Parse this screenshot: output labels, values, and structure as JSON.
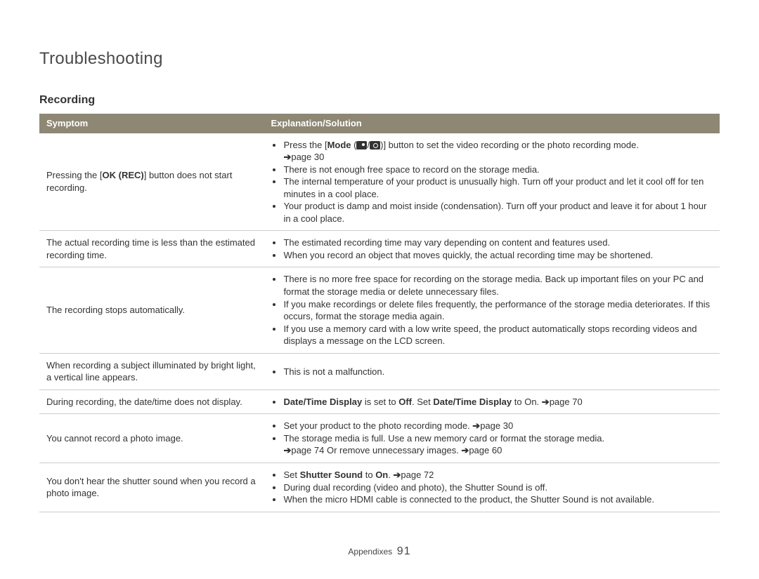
{
  "page_title": "Troubleshooting",
  "section_title": "Recording",
  "headers": {
    "col1": "Symptom",
    "col2": "Explanation/Solution"
  },
  "arrow_glyph": "➔",
  "rows": {
    "r1": {
      "symptom_pre": "Pressing the [",
      "symptom_bold": "OK (REC)",
      "symptom_post": "] button does not start recording.",
      "b1_pre": "Press the [",
      "b1_bold": "Mode",
      "b1_mid": " (",
      "b1_between": "/",
      "b1_close": ")] button to set the video recording or the photo recording mode. ",
      "b1_ref": "page 30",
      "b2": "There is not enough free space to record on the storage media.",
      "b3": "The internal temperature of your product is unusually high. Turn off your product and let it cool off for ten minutes in a cool place.",
      "b4": "Your product is damp and moist inside (condensation). Turn off your product and leave it for about 1 hour in a cool place."
    },
    "r2": {
      "symptom": "The actual recording time is less than the estimated recording time.",
      "b1": "The estimated recording time may vary depending on content and features used.",
      "b2": "When you record an object that moves quickly, the actual recording time may be shortened."
    },
    "r3": {
      "symptom": "The recording stops automatically.",
      "b1": "There is no more free space for recording on the storage media. Back up important files on your PC and format the storage media or delete unnecessary files.",
      "b2": "If you make recordings or delete files frequently, the performance of the storage media deteriorates. If this occurs, format the storage media again.",
      "b3": "If you use a memory card with a low write speed, the product automatically stops recording videos and displays a message on the LCD screen."
    },
    "r4": {
      "symptom": "When recording a subject illuminated by bright light, a vertical line appears.",
      "b1": "This is not a malfunction."
    },
    "r5": {
      "symptom": "During recording, the date/time does not display.",
      "b1_bold1": "Date/Time Display",
      "b1_mid1": " is set to ",
      "b1_bold2": "Off",
      "b1_mid2": ". Set ",
      "b1_bold3": "Date/Time Display",
      "b1_mid3": " to On. ",
      "b1_ref": "page 70"
    },
    "r6": {
      "symptom": "You cannot record a photo image.",
      "b1_pre": "Set your product to the photo recording mode. ",
      "b1_ref": "page 30",
      "b2_pre": "The storage media is full. Use a new memory card or format the storage media. ",
      "b2_ref1": "page 74 ",
      "b2_mid": "Or remove unnecessary images. ",
      "b2_ref2": "page 60"
    },
    "r7": {
      "symptom": "You don't hear the shutter sound when you record a photo image.",
      "b1_pre": "Set ",
      "b1_bold": "Shutter Sound",
      "b1_mid": " to ",
      "b1_bold2": "On",
      "b1_post": ". ",
      "b1_ref": "page 72",
      "b2": "During dual recording (video and photo), the Shutter Sound is off.",
      "b3": "When the micro HDMI cable is connected to the product, the Shutter Sound is not available."
    }
  },
  "footer": {
    "section": "Appendixes",
    "page_number": "91"
  }
}
